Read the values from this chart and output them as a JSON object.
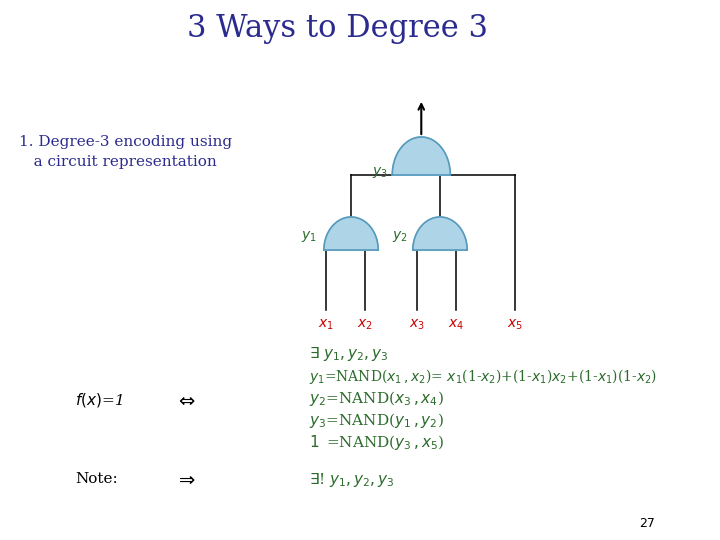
{
  "title": "3 Ways to Degree 3",
  "title_color": "#2b2b8f",
  "title_fontsize": 22,
  "bg_color": "#ffffff",
  "label_color": "#2b6b2b",
  "x_label_color": "#cc0000",
  "text_color": "#000000",
  "gate_fill": "#aed4e8",
  "gate_edge": "#5599bb",
  "page_num": "27",
  "left_text_line1": "1. Degree-3 encoding using",
  "left_text_line2": "   a circuit representation",
  "left_text_color": "#2b2b8f"
}
